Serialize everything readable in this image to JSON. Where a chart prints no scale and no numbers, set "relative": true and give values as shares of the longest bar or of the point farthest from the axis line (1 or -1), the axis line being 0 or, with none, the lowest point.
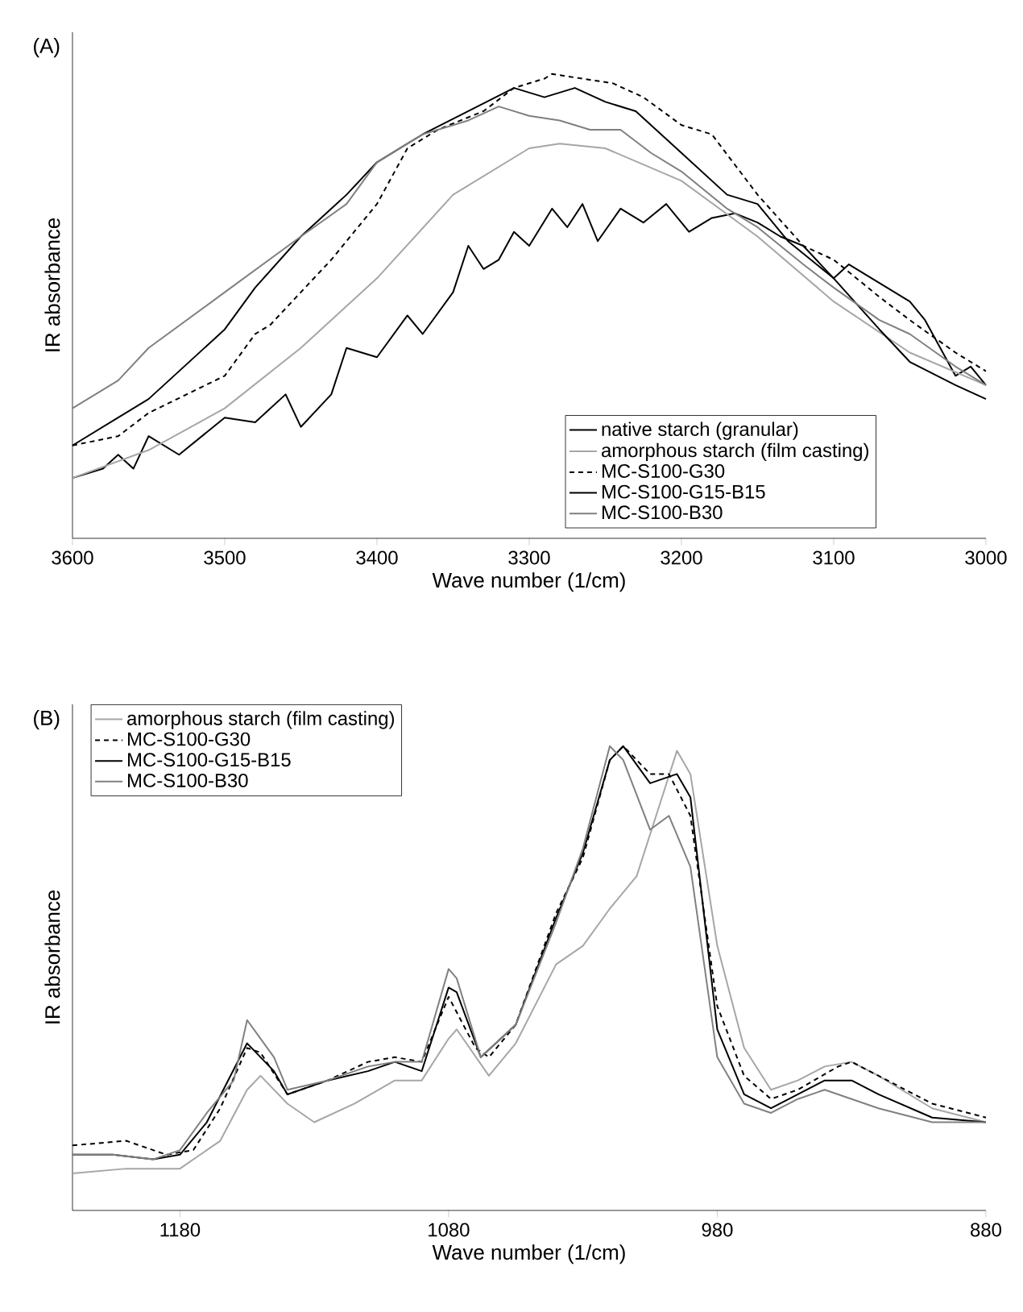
{
  "chart_data": [
    {
      "type": "line",
      "title": "(A)",
      "xlabel": "Wave number (1/cm)",
      "ylabel": "IR absorbance",
      "relative": true,
      "legend": "bottom right",
      "grid": false,
      "marker": "none",
      "xlim": [
        3600,
        3000
      ],
      "xticks": [
        3600,
        3500,
        3400,
        3300,
        3200,
        3100,
        3000
      ],
      "series": [
        {
          "name": "native starch (granular)",
          "color": "#000000",
          "line_style": "solid",
          "x": [
            3600,
            3580,
            3570,
            3560,
            3550,
            3530,
            3500,
            3480,
            3460,
            3450,
            3430,
            3420,
            3400,
            3380,
            3370,
            3350,
            3340,
            3330,
            3320,
            3310,
            3300,
            3285,
            3275,
            3265,
            3255,
            3240,
            3225,
            3210,
            3195,
            3180,
            3165,
            3150,
            3135,
            3120,
            3100,
            3090,
            3070,
            3050,
            3040,
            3020,
            3010,
            3000
          ],
          "values": [
            0.13,
            0.15,
            0.18,
            0.15,
            0.22,
            0.18,
            0.26,
            0.25,
            0.31,
            0.24,
            0.31,
            0.41,
            0.39,
            0.48,
            0.44,
            0.53,
            0.63,
            0.58,
            0.6,
            0.66,
            0.63,
            0.71,
            0.67,
            0.72,
            0.64,
            0.71,
            0.68,
            0.72,
            0.66,
            0.69,
            0.7,
            0.68,
            0.65,
            0.63,
            0.56,
            0.59,
            0.55,
            0.51,
            0.47,
            0.35,
            0.37,
            0.33
          ]
        },
        {
          "name": "amorphous starch (film casting)",
          "color": "#a6a6a6",
          "line_style": "solid",
          "x": [
            3600,
            3550,
            3500,
            3450,
            3400,
            3350,
            3300,
            3280,
            3250,
            3200,
            3150,
            3100,
            3050,
            3000
          ],
          "values": [
            0.13,
            0.19,
            0.28,
            0.41,
            0.56,
            0.74,
            0.84,
            0.85,
            0.84,
            0.77,
            0.65,
            0.51,
            0.4,
            0.33
          ]
        },
        {
          "name": "MC-S100-G30",
          "color": "#000000",
          "line_style": "dashed",
          "x": [
            3600,
            3570,
            3550,
            3500,
            3480,
            3470,
            3450,
            3430,
            3400,
            3380,
            3360,
            3330,
            3310,
            3290,
            3285,
            3265,
            3245,
            3225,
            3200,
            3180,
            3150,
            3120,
            3100,
            3070,
            3050,
            3020,
            3000
          ],
          "values": [
            0.2,
            0.22,
            0.27,
            0.35,
            0.44,
            0.46,
            0.53,
            0.6,
            0.72,
            0.84,
            0.88,
            0.92,
            0.97,
            0.99,
            1.0,
            0.99,
            0.98,
            0.95,
            0.89,
            0.87,
            0.74,
            0.63,
            0.6,
            0.52,
            0.47,
            0.4,
            0.36
          ]
        },
        {
          "name": "MC-S100-G15-B15",
          "color": "#000000",
          "line_style": "solid",
          "x": [
            3600,
            3570,
            3550,
            3500,
            3480,
            3450,
            3420,
            3400,
            3370,
            3340,
            3310,
            3290,
            3270,
            3250,
            3230,
            3200,
            3170,
            3150,
            3130,
            3100,
            3070,
            3050,
            3020,
            3000
          ],
          "values": [
            0.2,
            0.26,
            0.3,
            0.45,
            0.54,
            0.65,
            0.74,
            0.81,
            0.87,
            0.92,
            0.97,
            0.95,
            0.97,
            0.94,
            0.92,
            0.83,
            0.74,
            0.72,
            0.64,
            0.56,
            0.45,
            0.38,
            0.33,
            0.3
          ]
        },
        {
          "name": "MC-S100-B30",
          "color": "#808080",
          "line_style": "solid",
          "x": [
            3600,
            3570,
            3550,
            3500,
            3450,
            3420,
            3400,
            3370,
            3340,
            3320,
            3300,
            3280,
            3260,
            3240,
            3220,
            3200,
            3170,
            3150,
            3120,
            3100,
            3070,
            3050,
            3020,
            3000
          ],
          "values": [
            0.28,
            0.34,
            0.41,
            0.53,
            0.65,
            0.72,
            0.81,
            0.87,
            0.9,
            0.93,
            0.91,
            0.9,
            0.88,
            0.88,
            0.83,
            0.79,
            0.71,
            0.67,
            0.59,
            0.54,
            0.47,
            0.44,
            0.37,
            0.33
          ]
        }
      ]
    },
    {
      "type": "line",
      "title": "(B)",
      "xlabel": "Wave number (1/cm)",
      "ylabel": "IR absorbance",
      "relative": true,
      "legend": "top left",
      "grid": false,
      "marker": "none",
      "xlim": [
        1220,
        880
      ],
      "xticks": [
        1180,
        1080,
        980,
        880
      ],
      "series": [
        {
          "name": "amorphous starch (film casting)",
          "color": "#a6a6a6",
          "line_style": "solid",
          "x": [
            1220,
            1200,
            1180,
            1165,
            1155,
            1150,
            1140,
            1130,
            1115,
            1100,
            1090,
            1080,
            1077,
            1065,
            1055,
            1040,
            1030,
            1020,
            1010,
            1000,
            995,
            990,
            980,
            970,
            960,
            950,
            940,
            930,
            920,
            900,
            880
          ],
          "values": [
            0.08,
            0.09,
            0.09,
            0.15,
            0.26,
            0.29,
            0.23,
            0.19,
            0.23,
            0.28,
            0.28,
            0.37,
            0.39,
            0.29,
            0.36,
            0.53,
            0.57,
            0.65,
            0.72,
            0.9,
            0.99,
            0.94,
            0.57,
            0.35,
            0.26,
            0.28,
            0.31,
            0.32,
            0.29,
            0.22,
            0.19
          ]
        },
        {
          "name": "MC-S100-G30",
          "color": "#000000",
          "line_style": "dashed",
          "x": [
            1220,
            1200,
            1185,
            1175,
            1165,
            1155,
            1150,
            1140,
            1125,
            1110,
            1100,
            1090,
            1080,
            1070,
            1065,
            1055,
            1040,
            1030,
            1020,
            1015,
            1005,
            998,
            990,
            980,
            970,
            960,
            950,
            935,
            930,
            920,
            900,
            880
          ],
          "values": [
            0.14,
            0.15,
            0.12,
            0.13,
            0.22,
            0.35,
            0.34,
            0.25,
            0.28,
            0.32,
            0.33,
            0.32,
            0.46,
            0.35,
            0.33,
            0.4,
            0.64,
            0.76,
            0.97,
            1.0,
            0.94,
            0.94,
            0.85,
            0.44,
            0.29,
            0.24,
            0.26,
            0.31,
            0.32,
            0.29,
            0.23,
            0.2
          ]
        },
        {
          "name": "MC-S100-G15-B15",
          "color": "#000000",
          "line_style": "solid",
          "x": [
            1220,
            1205,
            1190,
            1180,
            1170,
            1155,
            1145,
            1140,
            1125,
            1110,
            1100,
            1090,
            1080,
            1077,
            1068,
            1055,
            1040,
            1030,
            1020,
            1015,
            1005,
            995,
            990,
            980,
            970,
            960,
            950,
            940,
            930,
            920,
            900,
            880
          ],
          "values": [
            0.12,
            0.12,
            0.11,
            0.12,
            0.19,
            0.36,
            0.3,
            0.25,
            0.28,
            0.3,
            0.32,
            0.3,
            0.48,
            0.47,
            0.33,
            0.4,
            0.63,
            0.77,
            0.97,
            1.0,
            0.92,
            0.94,
            0.89,
            0.39,
            0.25,
            0.22,
            0.25,
            0.28,
            0.28,
            0.25,
            0.2,
            0.19
          ]
        },
        {
          "name": "MC-S100-B30",
          "color": "#808080",
          "line_style": "solid",
          "x": [
            1220,
            1205,
            1190,
            1180,
            1170,
            1160,
            1155,
            1145,
            1140,
            1125,
            1110,
            1100,
            1090,
            1080,
            1077,
            1068,
            1055,
            1040,
            1030,
            1020,
            1015,
            1005,
            998,
            990,
            980,
            970,
            960,
            950,
            940,
            930,
            920,
            900,
            880
          ],
          "values": [
            0.12,
            0.12,
            0.11,
            0.13,
            0.21,
            0.28,
            0.41,
            0.33,
            0.26,
            0.28,
            0.31,
            0.32,
            0.32,
            0.52,
            0.5,
            0.33,
            0.4,
            0.62,
            0.78,
            1.0,
            0.97,
            0.82,
            0.85,
            0.74,
            0.33,
            0.23,
            0.21,
            0.24,
            0.26,
            0.24,
            0.22,
            0.19,
            0.19
          ]
        }
      ]
    }
  ]
}
